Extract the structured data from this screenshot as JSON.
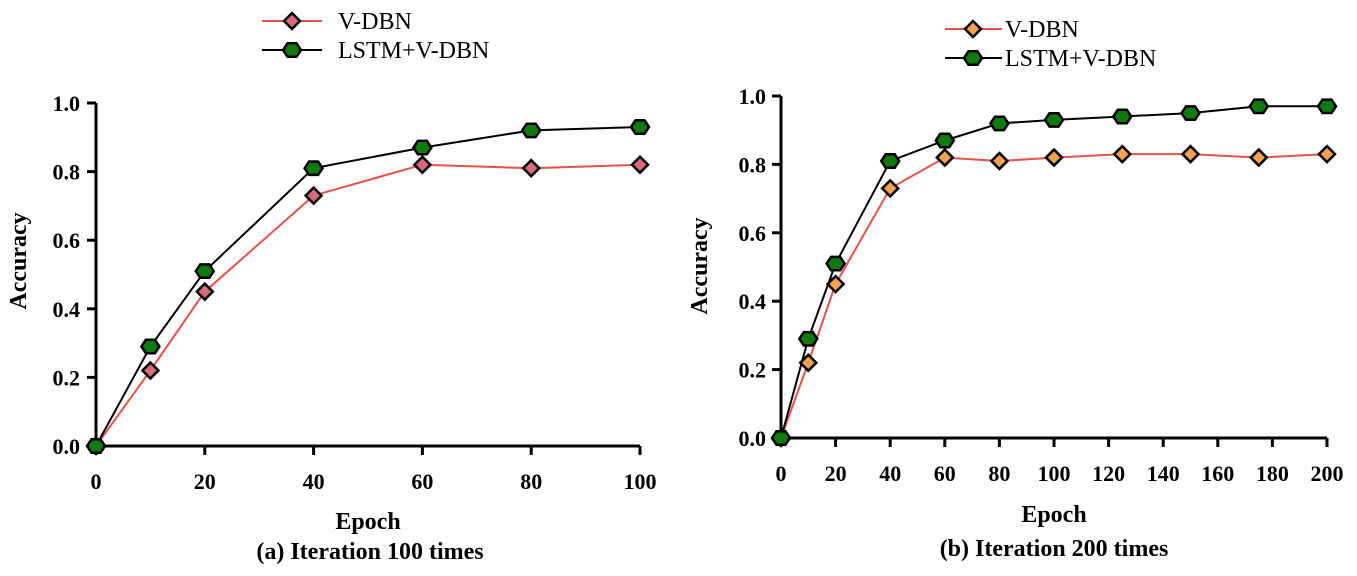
{
  "colors": {
    "vdbn_line": "#e8504a",
    "vdbn_marker_a": "#d96a7c",
    "vdbn_marker_b": "#f2a150",
    "lstm_line": "#000000",
    "lstm_marker": "#0f7a0f",
    "axis": "#000000"
  },
  "chart_data": [
    {
      "type": "line",
      "caption": "(a) Iteration 100 times",
      "xlabel": "Epoch",
      "ylabel": "Accuracy",
      "xlim": [
        0,
        100
      ],
      "ylim": [
        0,
        1.0
      ],
      "xticks": [
        "0",
        "20",
        "40",
        "60",
        "80",
        "100"
      ],
      "yticks": [
        "0.0",
        "0.2",
        "0.4",
        "0.6",
        "0.8",
        "1.0"
      ],
      "grid": false,
      "legend_position": "top-center",
      "x": [
        0,
        10,
        20,
        40,
        60,
        80,
        100
      ],
      "series": [
        {
          "name": "V-DBN",
          "marker": "diamond",
          "values": [
            0.0,
            0.22,
            0.45,
            0.73,
            0.82,
            0.81,
            0.82
          ]
        },
        {
          "name": "LSTM+V-DBN",
          "marker": "hexagon",
          "values": [
            0.0,
            0.29,
            0.51,
            0.81,
            0.87,
            0.92,
            0.93
          ]
        }
      ]
    },
    {
      "type": "line",
      "caption": "(b) Iteration 200 times",
      "xlabel": "Epoch",
      "ylabel": "Accuracy",
      "xlim": [
        0,
        200
      ],
      "ylim": [
        0,
        1.0
      ],
      "xticks": [
        "0",
        "20",
        "40",
        "60",
        "80",
        "100",
        "120",
        "140",
        "160",
        "180",
        "200"
      ],
      "yticks": [
        "0.0",
        "0.2",
        "0.4",
        "0.6",
        "0.8",
        "1.0"
      ],
      "grid": false,
      "legend_position": "top-center",
      "x": [
        0,
        10,
        20,
        40,
        60,
        80,
        100,
        125,
        150,
        175,
        200
      ],
      "series": [
        {
          "name": "V-DBN",
          "marker": "diamond",
          "values": [
            0.0,
            0.22,
            0.45,
            0.73,
            0.82,
            0.81,
            0.82,
            0.83,
            0.83,
            0.82,
            0.83
          ]
        },
        {
          "name": "LSTM+V-DBN",
          "marker": "hexagon",
          "values": [
            0.0,
            0.29,
            0.51,
            0.81,
            0.87,
            0.92,
            0.93,
            0.94,
            0.95,
            0.97,
            0.97
          ]
        }
      ]
    }
  ]
}
